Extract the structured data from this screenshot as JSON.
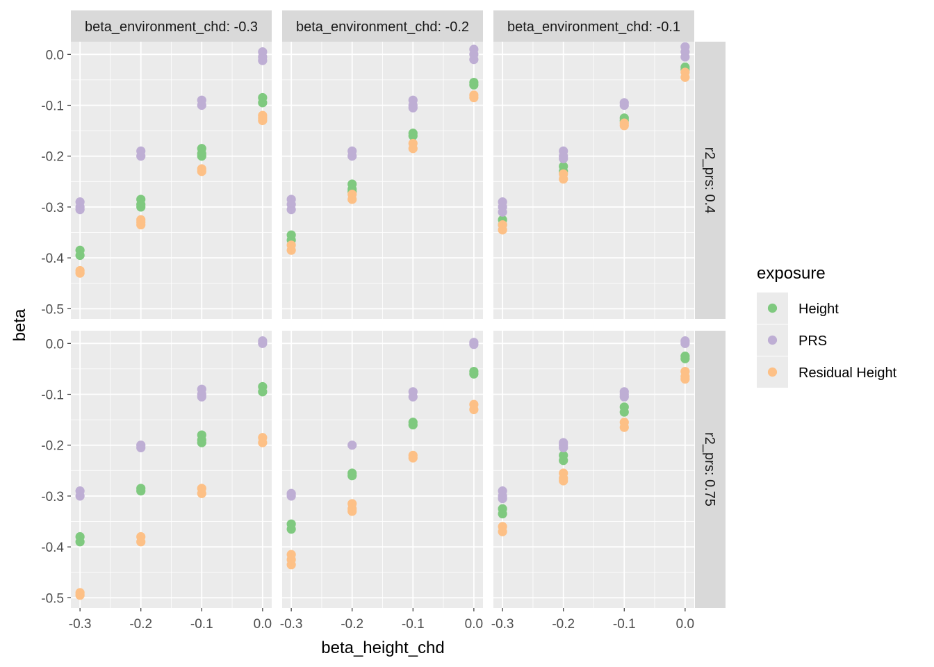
{
  "chart_data": {
    "type": "scatter",
    "facet_cols": {
      "variable": "beta_environment_chd",
      "values": [
        -0.3,
        -0.2,
        -0.1
      ],
      "labels": [
        "beta_environment_chd: -0.3",
        "beta_environment_chd: -0.2",
        "beta_environment_chd: -0.1"
      ]
    },
    "facet_rows": {
      "variable": "r2_prs",
      "values": [
        0.4,
        0.75
      ],
      "labels": [
        "r2_prs: 0.4",
        "r2_prs: 0.75"
      ]
    },
    "xlabel": "beta_height_chd",
    "ylabel": "beta",
    "x_ticks": [
      -0.3,
      -0.2,
      -0.1,
      0.0
    ],
    "x_tick_labels": [
      "-0.3",
      "-0.2",
      "-0.1",
      "0.0"
    ],
    "y_ticks": [
      0.0,
      -0.1,
      -0.2,
      -0.3,
      -0.4,
      -0.5
    ],
    "y_tick_labels": [
      "0.0",
      "-0.1",
      "-0.2",
      "-0.3",
      "-0.4",
      "-0.5"
    ],
    "xlim": [
      -0.315,
      0.015
    ],
    "ylim": [
      -0.52,
      0.025
    ],
    "grid": true,
    "legend": {
      "title": "exposure",
      "placement": "right",
      "entries": [
        {
          "name": "Height",
          "color": "#7fc97f"
        },
        {
          "name": "PRS",
          "color": "#beaed4"
        },
        {
          "name": "Residual Height",
          "color": "#fdc086"
        }
      ]
    },
    "series": [
      {
        "name": "Height",
        "color": "#7fc97f",
        "panels": [
          {
            "row": 0,
            "col": 0,
            "points": [
              [
                -0.3,
                -0.385
              ],
              [
                -0.3,
                -0.395
              ],
              [
                -0.2,
                -0.285
              ],
              [
                -0.2,
                -0.295
              ],
              [
                -0.2,
                -0.3
              ],
              [
                -0.1,
                -0.185
              ],
              [
                -0.1,
                -0.195
              ],
              [
                -0.1,
                -0.2
              ],
              [
                0.0,
                -0.085
              ],
              [
                0.0,
                -0.095
              ]
            ]
          },
          {
            "row": 0,
            "col": 1,
            "points": [
              [
                -0.3,
                -0.355
              ],
              [
                -0.3,
                -0.365
              ],
              [
                -0.2,
                -0.255
              ],
              [
                -0.2,
                -0.265
              ],
              [
                -0.2,
                -0.27
              ],
              [
                -0.1,
                -0.155
              ],
              [
                -0.1,
                -0.16
              ],
              [
                0.0,
                -0.055
              ],
              [
                0.0,
                -0.06
              ]
            ]
          },
          {
            "row": 0,
            "col": 2,
            "points": [
              [
                -0.3,
                -0.325
              ],
              [
                -0.3,
                -0.335
              ],
              [
                -0.2,
                -0.22
              ],
              [
                -0.2,
                -0.23
              ],
              [
                -0.1,
                -0.125
              ],
              [
                -0.1,
                -0.13
              ],
              [
                0.0,
                -0.025
              ],
              [
                0.0,
                -0.03
              ]
            ]
          },
          {
            "row": 1,
            "col": 0,
            "points": [
              [
                -0.3,
                -0.38
              ],
              [
                -0.3,
                -0.39
              ],
              [
                -0.2,
                -0.285
              ],
              [
                -0.2,
                -0.29
              ],
              [
                -0.1,
                -0.18
              ],
              [
                -0.1,
                -0.19
              ],
              [
                -0.1,
                -0.195
              ],
              [
                0.0,
                -0.085
              ],
              [
                0.0,
                -0.095
              ]
            ]
          },
          {
            "row": 1,
            "col": 1,
            "points": [
              [
                -0.3,
                -0.355
              ],
              [
                -0.3,
                -0.365
              ],
              [
                -0.2,
                -0.255
              ],
              [
                -0.2,
                -0.26
              ],
              [
                -0.1,
                -0.155
              ],
              [
                -0.1,
                -0.16
              ],
              [
                0.0,
                -0.055
              ],
              [
                0.0,
                -0.06
              ]
            ]
          },
          {
            "row": 1,
            "col": 2,
            "points": [
              [
                -0.3,
                -0.325
              ],
              [
                -0.3,
                -0.335
              ],
              [
                -0.2,
                -0.22
              ],
              [
                -0.2,
                -0.23
              ],
              [
                -0.1,
                -0.125
              ],
              [
                -0.1,
                -0.135
              ],
              [
                0.0,
                -0.025
              ],
              [
                0.0,
                -0.03
              ]
            ]
          }
        ]
      },
      {
        "name": "PRS",
        "color": "#beaed4",
        "panels": [
          {
            "row": 0,
            "col": 0,
            "points": [
              [
                -0.3,
                -0.29
              ],
              [
                -0.3,
                -0.3
              ],
              [
                -0.3,
                -0.305
              ],
              [
                -0.2,
                -0.19
              ],
              [
                -0.2,
                -0.2
              ],
              [
                -0.1,
                -0.09
              ],
              [
                -0.1,
                -0.1
              ],
              [
                0.0,
                0.005
              ],
              [
                0.0,
                -0.005
              ],
              [
                0.0,
                -0.012
              ]
            ]
          },
          {
            "row": 0,
            "col": 1,
            "points": [
              [
                -0.3,
                -0.285
              ],
              [
                -0.3,
                -0.295
              ],
              [
                -0.3,
                -0.305
              ],
              [
                -0.2,
                -0.19
              ],
              [
                -0.2,
                -0.2
              ],
              [
                -0.1,
                -0.09
              ],
              [
                -0.1,
                -0.1
              ],
              [
                -0.1,
                -0.105
              ],
              [
                0.0,
                0.01
              ],
              [
                0.0,
                0.0
              ],
              [
                0.0,
                -0.01
              ]
            ]
          },
          {
            "row": 0,
            "col": 2,
            "points": [
              [
                -0.3,
                -0.29
              ],
              [
                -0.3,
                -0.3
              ],
              [
                -0.3,
                -0.31
              ],
              [
                -0.2,
                -0.19
              ],
              [
                -0.2,
                -0.2
              ],
              [
                -0.2,
                -0.205
              ],
              [
                -0.1,
                -0.095
              ],
              [
                -0.1,
                -0.1
              ],
              [
                0.0,
                0.015
              ],
              [
                0.0,
                0.005
              ],
              [
                0.0,
                -0.005
              ]
            ]
          },
          {
            "row": 1,
            "col": 0,
            "points": [
              [
                -0.3,
                -0.29
              ],
              [
                -0.3,
                -0.3
              ],
              [
                -0.2,
                -0.2
              ],
              [
                -0.2,
                -0.205
              ],
              [
                -0.1,
                -0.09
              ],
              [
                -0.1,
                -0.1
              ],
              [
                -0.1,
                -0.105
              ],
              [
                0.0,
                0.005
              ],
              [
                0.0,
                0.0
              ]
            ]
          },
          {
            "row": 1,
            "col": 1,
            "points": [
              [
                -0.3,
                -0.295
              ],
              [
                -0.3,
                -0.3
              ],
              [
                -0.2,
                -0.2
              ],
              [
                -0.1,
                -0.095
              ],
              [
                -0.1,
                -0.105
              ],
              [
                0.0,
                0.002
              ],
              [
                0.0,
                -0.002
              ]
            ]
          },
          {
            "row": 1,
            "col": 2,
            "points": [
              [
                -0.3,
                -0.29
              ],
              [
                -0.3,
                -0.3
              ],
              [
                -0.3,
                -0.305
              ],
              [
                -0.2,
                -0.195
              ],
              [
                -0.2,
                -0.2
              ],
              [
                -0.2,
                -0.205
              ],
              [
                -0.1,
                -0.095
              ],
              [
                -0.1,
                -0.1
              ],
              [
                -0.1,
                -0.105
              ],
              [
                0.0,
                0.005
              ],
              [
                0.0,
                0.0
              ]
            ]
          }
        ]
      },
      {
        "name": "Residual Height",
        "color": "#fdc086",
        "panels": [
          {
            "row": 0,
            "col": 0,
            "points": [
              [
                -0.3,
                -0.425
              ],
              [
                -0.3,
                -0.43
              ],
              [
                -0.2,
                -0.325
              ],
              [
                -0.2,
                -0.33
              ],
              [
                -0.2,
                -0.335
              ],
              [
                -0.1,
                -0.225
              ],
              [
                -0.1,
                -0.23
              ],
              [
                0.0,
                -0.12
              ],
              [
                0.0,
                -0.125
              ],
              [
                0.0,
                -0.13
              ]
            ]
          },
          {
            "row": 0,
            "col": 1,
            "points": [
              [
                -0.3,
                -0.375
              ],
              [
                -0.3,
                -0.385
              ],
              [
                -0.2,
                -0.275
              ],
              [
                -0.2,
                -0.285
              ],
              [
                -0.1,
                -0.175
              ],
              [
                -0.1,
                -0.185
              ],
              [
                0.0,
                -0.08
              ],
              [
                0.0,
                -0.085
              ]
            ]
          },
          {
            "row": 0,
            "col": 2,
            "points": [
              [
                -0.3,
                -0.335
              ],
              [
                -0.3,
                -0.345
              ],
              [
                -0.2,
                -0.235
              ],
              [
                -0.2,
                -0.245
              ],
              [
                -0.1,
                -0.135
              ],
              [
                -0.1,
                -0.14
              ],
              [
                0.0,
                -0.035
              ],
              [
                0.0,
                -0.045
              ]
            ]
          },
          {
            "row": 1,
            "col": 0,
            "points": [
              [
                -0.3,
                -0.49
              ],
              [
                -0.3,
                -0.495
              ],
              [
                -0.2,
                -0.38
              ],
              [
                -0.2,
                -0.39
              ],
              [
                -0.1,
                -0.285
              ],
              [
                -0.1,
                -0.295
              ],
              [
                0.0,
                -0.185
              ],
              [
                0.0,
                -0.195
              ]
            ]
          },
          {
            "row": 1,
            "col": 1,
            "points": [
              [
                -0.3,
                -0.415
              ],
              [
                -0.3,
                -0.425
              ],
              [
                -0.3,
                -0.435
              ],
              [
                -0.2,
                -0.315
              ],
              [
                -0.2,
                -0.325
              ],
              [
                -0.2,
                -0.33
              ],
              [
                -0.1,
                -0.22
              ],
              [
                -0.1,
                -0.225
              ],
              [
                0.0,
                -0.12
              ],
              [
                0.0,
                -0.13
              ]
            ]
          },
          {
            "row": 1,
            "col": 2,
            "points": [
              [
                -0.3,
                -0.36
              ],
              [
                -0.3,
                -0.37
              ],
              [
                -0.2,
                -0.255
              ],
              [
                -0.2,
                -0.265
              ],
              [
                -0.2,
                -0.27
              ],
              [
                -0.1,
                -0.155
              ],
              [
                -0.1,
                -0.165
              ],
              [
                0.0,
                -0.055
              ],
              [
                0.0,
                -0.065
              ],
              [
                0.0,
                -0.07
              ]
            ]
          }
        ]
      }
    ]
  }
}
